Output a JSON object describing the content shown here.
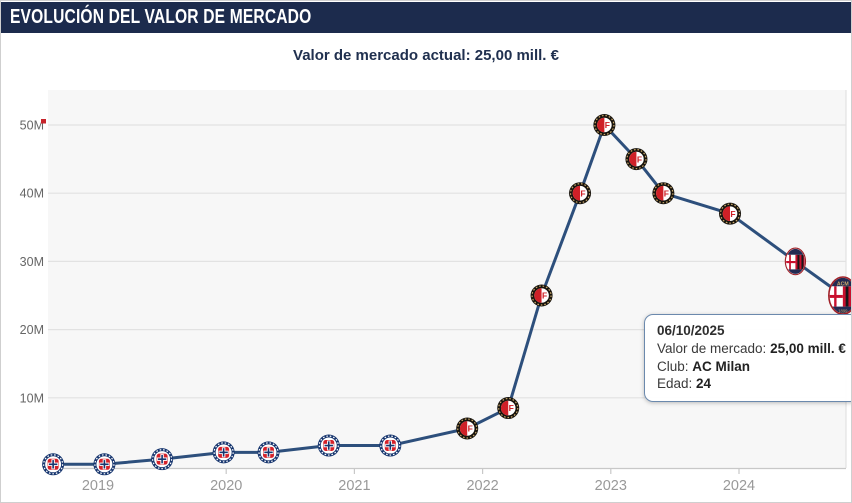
{
  "header": {
    "title": "EVOLUCIÓN DEL VALOR DE MERCADO"
  },
  "subtitle": "Valor de mercado actual: 25,00 mill. €",
  "tooltip": {
    "date": "06/10/2025",
    "market_value_label": "Valor de mercado: ",
    "market_value": "25,00 mill. €",
    "club_label": "Club: ",
    "club": "AC Milan",
    "age_label": "Edad: ",
    "age": "24"
  },
  "chart_data": {
    "type": "line",
    "title": "Evolución del valor de mercado",
    "unit": "mill. €",
    "xlabel": "",
    "ylabel": "",
    "grid": true,
    "line_color": "#2d4f7c",
    "plot_bg": "#f7f7f7",
    "ylim": [
      0,
      55
    ],
    "y_ticks": [
      "10M",
      "20M",
      "30M",
      "40M",
      "50M"
    ],
    "y_tick_values": [
      10,
      20,
      30,
      40,
      50
    ],
    "x_ticks": [
      "2019",
      "2020",
      "2021",
      "2022",
      "2023",
      "2024"
    ],
    "x_tick_values": [
      2019,
      2020,
      2021,
      2022,
      2023,
      2024
    ],
    "max_value_marker": 50,
    "points": [
      {
        "x": 2018.65,
        "value": 0.25,
        "club": "cruz-azul"
      },
      {
        "x": 2019.05,
        "value": 0.25,
        "club": "cruz-azul"
      },
      {
        "x": 2019.5,
        "value": 1.0,
        "club": "cruz-azul"
      },
      {
        "x": 2019.98,
        "value": 2.0,
        "club": "cruz-azul"
      },
      {
        "x": 2020.33,
        "value": 2.0,
        "club": "cruz-azul"
      },
      {
        "x": 2020.8,
        "value": 3.0,
        "club": "cruz-azul"
      },
      {
        "x": 2021.28,
        "value": 3.0,
        "club": "cruz-azul"
      },
      {
        "x": 2021.88,
        "value": 5.5,
        "club": "feyenoord"
      },
      {
        "x": 2022.2,
        "value": 8.5,
        "club": "feyenoord"
      },
      {
        "x": 2022.46,
        "value": 25,
        "club": "feyenoord"
      },
      {
        "x": 2022.76,
        "value": 40,
        "club": "feyenoord"
      },
      {
        "x": 2022.95,
        "value": 50,
        "club": "feyenoord"
      },
      {
        "x": 2023.2,
        "value": 45,
        "club": "feyenoord"
      },
      {
        "x": 2023.41,
        "value": 40,
        "club": "feyenoord"
      },
      {
        "x": 2023.93,
        "value": 37,
        "club": "feyenoord"
      },
      {
        "x": 2024.44,
        "value": 30,
        "club": "ac-milan"
      },
      {
        "x": 2024.81,
        "value": 25,
        "club": "ac-milan",
        "highlight": true
      }
    ],
    "clubs": {
      "cruz-azul": {
        "name": "Cruz Azul",
        "colors": [
          "#16356e",
          "#d6222a",
          "#ffffff"
        ]
      },
      "feyenoord": {
        "name": "Feyenoord",
        "colors": [
          "#17130d",
          "#cf2027",
          "#ffffff"
        ]
      },
      "ac-milan": {
        "name": "AC Milan",
        "colors": [
          "#c8102e",
          "#17171a",
          "#232a52"
        ]
      }
    }
  },
  "colors": {
    "header_bg": "#1c2b4d",
    "subtitle_text": "#20304f",
    "grid_line": "#e2e2e2",
    "axis_line": "#c8c8c8",
    "y_label": "#666666",
    "x_label": "#999999",
    "tooltip_border": "#6b89ad",
    "max_marker": "#c7242b"
  }
}
